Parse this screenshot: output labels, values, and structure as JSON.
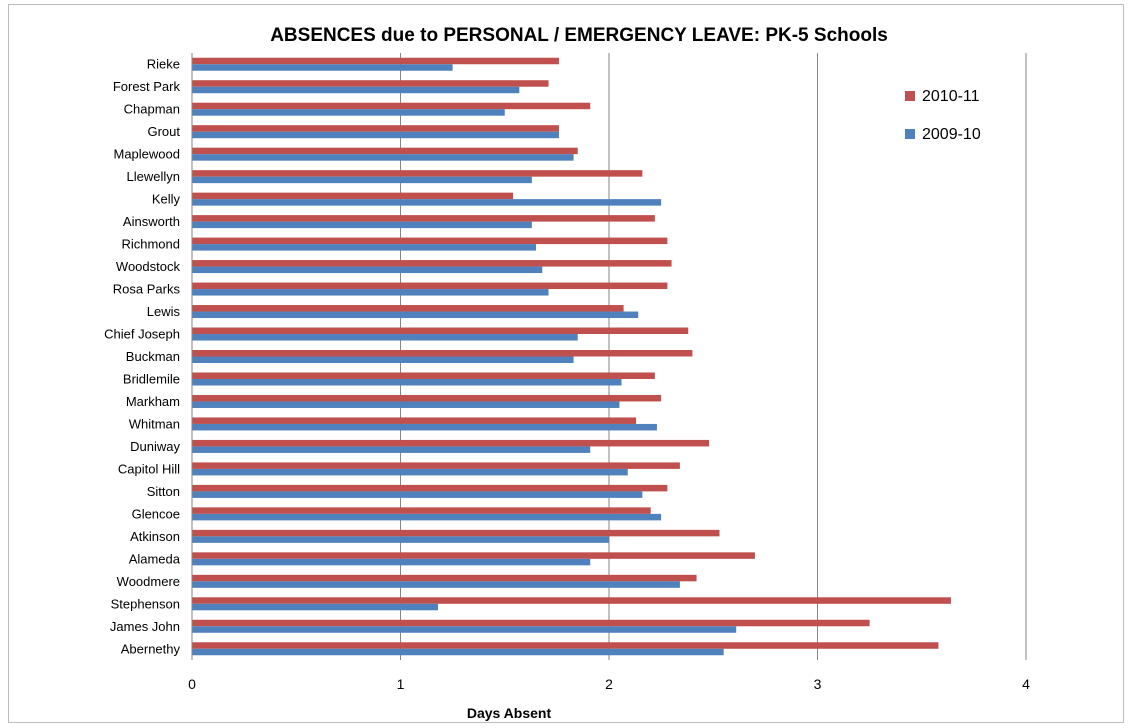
{
  "chart_data": {
    "type": "bar",
    "orientation": "horizontal",
    "title": "ABSENCES due to PERSONAL / EMERGENCY LEAVE:  PK-5 Schools",
    "xlabel": "Days Absent",
    "ylabel": "",
    "xlim": [
      0,
      4
    ],
    "xticks": [
      "0",
      "1",
      "2",
      "3",
      "4"
    ],
    "grid": "vertical major gridlines",
    "legend_position": "right",
    "categories": [
      "Rieke",
      "Forest Park",
      "Chapman",
      "Grout",
      "Maplewood",
      "Llewellyn",
      "Kelly",
      "Ainsworth",
      "Richmond",
      "Woodstock",
      "Rosa Parks",
      "Lewis",
      "Chief Joseph",
      "Buckman",
      "Bridlemile",
      "Markham",
      "Whitman",
      "Duniway",
      "Capitol Hill",
      "Sitton",
      "Glencoe",
      "Atkinson",
      "Alameda",
      "Woodmere",
      "Stephenson",
      "James John",
      "Abernethy"
    ],
    "series": [
      {
        "name": "2010-11",
        "color": "#c0504d",
        "values": [
          1.76,
          1.71,
          1.91,
          1.76,
          1.85,
          2.16,
          1.54,
          2.22,
          2.28,
          2.3,
          2.28,
          2.07,
          2.38,
          2.4,
          2.22,
          2.25,
          2.13,
          2.48,
          2.34,
          2.28,
          2.2,
          2.53,
          2.7,
          2.42,
          3.64,
          3.25,
          3.58
        ]
      },
      {
        "name": "2009-10",
        "color": "#4f81bd",
        "values": [
          1.25,
          1.57,
          1.5,
          1.76,
          1.83,
          1.63,
          2.25,
          1.63,
          1.65,
          1.68,
          1.71,
          2.14,
          1.85,
          1.83,
          2.06,
          2.05,
          2.23,
          1.91,
          2.09,
          2.16,
          2.25,
          2.0,
          1.91,
          2.34,
          1.18,
          2.61,
          2.55
        ]
      }
    ],
    "legend_order": [
      "2010-11",
      "2009-10"
    ]
  }
}
